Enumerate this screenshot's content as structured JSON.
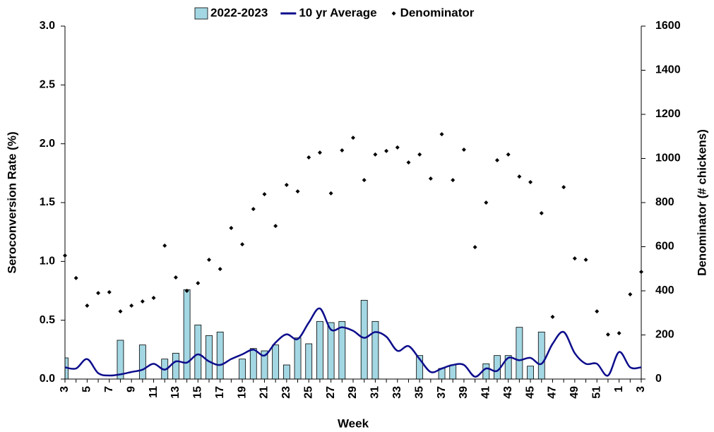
{
  "chart_data": {
    "type": "combo",
    "x_label": "Week",
    "y_label": "Seroconversion Rate (%)",
    "y2_label": "Denominator (# chickens)",
    "categories": [
      "3",
      null,
      "5",
      null,
      "7",
      null,
      "9",
      null,
      "11",
      null,
      "13",
      null,
      "15",
      null,
      "17",
      null,
      "19",
      null,
      "21",
      null,
      "23",
      null,
      "25",
      null,
      "27",
      null,
      "29",
      null,
      "31",
      null,
      "33",
      null,
      "35",
      null,
      "37",
      null,
      "39",
      null,
      "41",
      null,
      "43",
      null,
      "45",
      null,
      "47",
      null,
      "49",
      null,
      "51",
      null,
      "1",
      null,
      "3"
    ],
    "ylim": [
      0,
      3
    ],
    "yticks": [
      {
        "value": 0,
        "label": "0.0"
      },
      0.5,
      {
        "value": 1,
        "label": "1.0"
      },
      1.5,
      {
        "value": 2,
        "label": "2.0"
      },
      2.5,
      {
        "value": 3,
        "label": "3.0"
      }
    ],
    "y2lim": [
      0,
      1600
    ],
    "y2ticks": [
      0,
      200,
      400,
      600,
      800,
      1000,
      1200,
      1400,
      1600
    ],
    "grid": false,
    "legend": "top",
    "series": [
      {
        "name": "2022-2023",
        "type": "bar",
        "color": "#a3d7e3",
        "values": [
          0.18,
          null,
          null,
          null,
          null,
          0.33,
          null,
          0.29,
          null,
          0.17,
          0.22,
          0.76,
          0.46,
          0.37,
          0.4,
          null,
          0.17,
          0.26,
          0.24,
          0.29,
          0.12,
          0.35,
          0.3,
          0.49,
          0.48,
          0.49,
          null,
          0.67,
          0.49,
          null,
          null,
          null,
          0.2,
          null,
          0.09,
          0.12,
          null,
          null,
          0.13,
          0.2,
          0.2,
          0.44,
          0.11,
          0.4,
          null,
          null,
          null,
          null,
          null,
          null,
          null,
          null,
          null
        ]
      },
      {
        "name": "10 yr Average",
        "type": "line",
        "color": "#0d0d8c",
        "values": [
          0.1,
          0.09,
          0.17,
          0.05,
          0.03,
          0.04,
          0.06,
          0.08,
          0.13,
          0.08,
          0.15,
          0.14,
          0.21,
          0.15,
          0.12,
          0.17,
          0.21,
          0.25,
          0.2,
          0.31,
          0.38,
          0.34,
          0.48,
          0.6,
          0.42,
          0.44,
          0.41,
          0.35,
          0.4,
          0.36,
          0.24,
          0.28,
          0.17,
          0.06,
          0.09,
          0.12,
          0.12,
          0.02,
          0.09,
          0.07,
          0.18,
          0.16,
          0.18,
          0.13,
          0.3,
          0.4,
          0.22,
          0.13,
          0.13,
          0.03,
          0.23,
          0.1,
          0.1
        ]
      },
      {
        "name": "Denominator",
        "type": "scatter",
        "axis": "y2",
        "color": "#000000",
        "values": [
          560,
          458,
          333,
          390,
          394,
          307,
          333,
          352,
          368,
          605,
          461,
          400,
          435,
          541,
          499,
          685,
          611,
          771,
          838,
          694,
          880,
          851,
          1005,
          1027,
          842,
          1037,
          1094,
          902,
          1018,
          1034,
          1050,
          982,
          1018,
          909,
          1110,
          902,
          1040,
          598,
          800,
          992,
          1018,
          918,
          893,
          752,
          282,
          870,
          547,
          541,
          307,
          202,
          208,
          384,
          486
        ]
      }
    ]
  }
}
